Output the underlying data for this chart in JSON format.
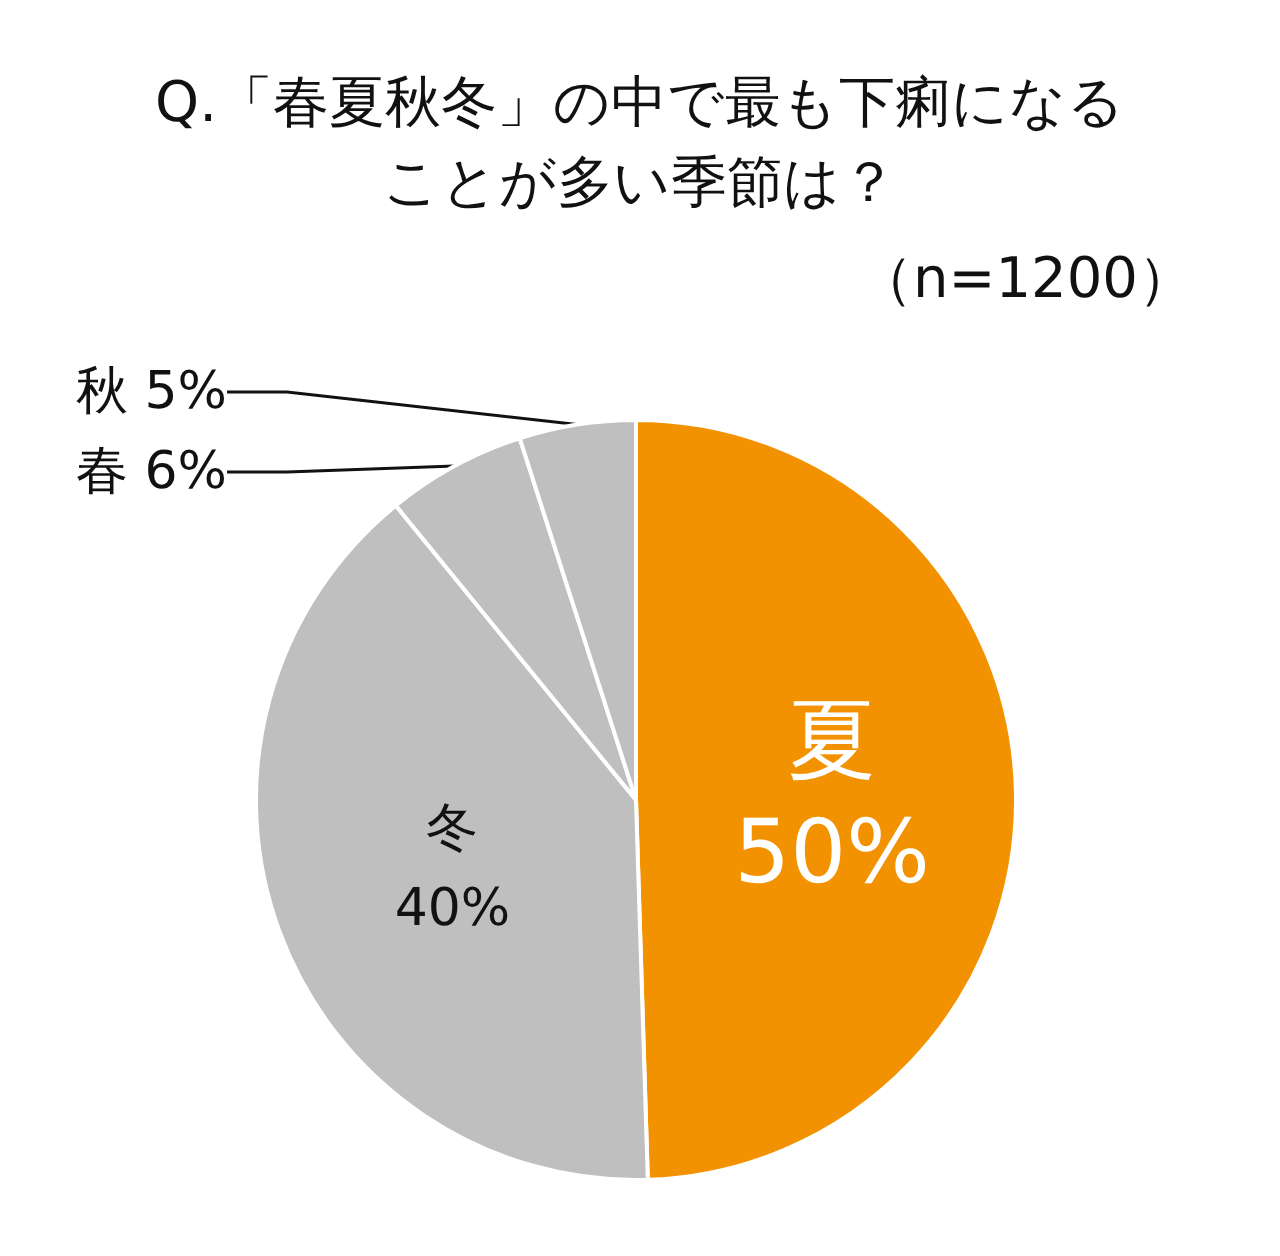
{
  "chart_data": {
    "type": "pie",
    "title": "Q.「春夏秋冬」の中で最も下痢になることが多い季節は？",
    "subtitle": "（n=1200）",
    "categories": [
      "夏",
      "冬",
      "春",
      "秋"
    ],
    "values": [
      50,
      40,
      6,
      5
    ],
    "colors": [
      "#f39200",
      "#bfbfbf",
      "#bfbfbf",
      "#bfbfbf"
    ],
    "value_labels": [
      "50%",
      "40%",
      "6%",
      "5%"
    ]
  }
}
